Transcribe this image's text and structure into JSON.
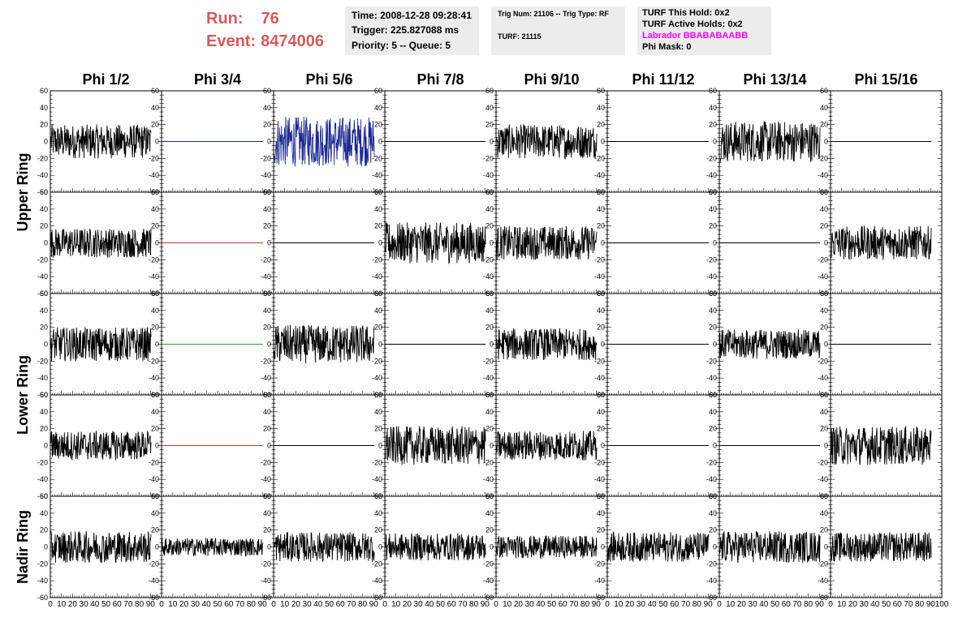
{
  "header": {
    "run_label": "Run:",
    "run_value": "76",
    "event_label": "Event:",
    "event_value": "8474006",
    "time_line": "Time: 2008-12-28 09:28:41",
    "trigger_line": "Trigger: 225.827088 ms",
    "priority_line": "Priority: 5 -- Queue: 5",
    "trig_line": "Trig Num: 21106 -- Trig Type: RF",
    "turf_line": "TURF: 21115",
    "hold_line": "TURF This Hold: 0x2",
    "active_line": "TURF Active Holds: 0x2",
    "labrador_line": "Labrador BBABABAABB",
    "phimask_line": "Phi Mask: 0"
  },
  "colors": {
    "run_text": "#d45a5a",
    "labrador_text": "#ff00ff",
    "trace_default": "#000000",
    "trace_blue": "#1f2a8f",
    "trace_red": "#c0392b",
    "trace_green": "#2e9a2e",
    "panel_bg": "#ececec"
  },
  "chart_data": {
    "type": "line",
    "columns": [
      "Phi 1/2",
      "Phi 3/4",
      "Phi 5/6",
      "Phi 7/8",
      "Phi 9/10",
      "Phi 11/12",
      "Phi 13/14",
      "Phi 15/16"
    ],
    "ring_labels": [
      "Upper Ring",
      "Lower Ring",
      "Nadir Ring"
    ],
    "xlim": [
      0,
      100
    ],
    "ylim": [
      -60,
      60
    ],
    "x_ticks": [
      "0",
      "10",
      "20",
      "30",
      "40",
      "50",
      "60",
      "70",
      "80",
      "90",
      "100"
    ],
    "y_ticks": [
      "-60",
      "-40",
      "-20",
      "0",
      "20",
      "40",
      "60"
    ],
    "grid": false,
    "row_amplitude": [
      [
        15,
        0,
        22,
        0,
        15,
        0,
        18,
        0
      ],
      [
        13,
        0,
        0,
        18,
        15,
        0,
        0,
        15
      ],
      [
        15,
        0,
        17,
        0,
        14,
        0,
        13,
        0
      ],
      [
        13,
        0,
        0,
        17,
        13,
        0,
        0,
        17
      ],
      [
        14,
        8,
        13,
        12,
        10,
        13,
        14,
        13
      ]
    ],
    "flat_color": [
      [
        "",
        "blue",
        "blue",
        "",
        "",
        "",
        "",
        ""
      ],
      [
        "",
        "red",
        "",
        "",
        "",
        "",
        "",
        ""
      ],
      [
        "",
        "green",
        "",
        "",
        "",
        "",
        "",
        ""
      ],
      [
        "",
        "red",
        "",
        "",
        "",
        "",
        "",
        ""
      ],
      [
        "",
        "",
        "",
        "",
        "",
        "",
        "",
        ""
      ]
    ]
  }
}
